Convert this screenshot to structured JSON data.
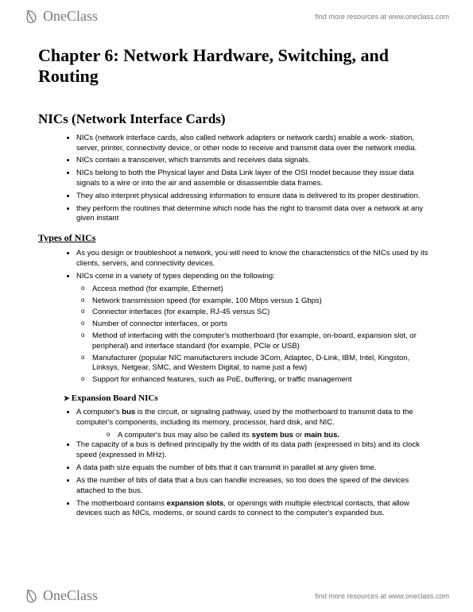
{
  "brand": {
    "name": "OneClass",
    "tagline": "find more resources at www.oneclass.com",
    "logo_color": "#7a7a7a",
    "tagline_color": "#7a7a7a"
  },
  "title": "Chapter 6: Network Hardware, Switching, and Routing",
  "section1": {
    "heading": "NICs (Network Interface Cards)",
    "bullets": [
      "NICs (network interface cards, also called network adapters or network cards) enable a work- station, server, printer, connectivity device, or other node to receive and transmit data over the network media.",
      "NICs contain a transceiver, which transmits and receives data signals.",
      "NICs belong to both the Physical layer and Data Link layer of the OSI model because they issue data signals to a wire or into the air and assemble or disassemble data frames.",
      "They also interpret physical addressing information to ensure data is delivered to its proper destination.",
      "they perform the routines that determine which node has the right to transmit data over a network at any given instant"
    ]
  },
  "section2": {
    "heading": "Types of NICs",
    "bullets": [
      "As you design or troubleshoot a network, you will need to know the characteristics of the NICs used by its clients, servers, and connectivity devices.",
      "NICs come in a variety of types depending on the following:"
    ],
    "sub": [
      "Access method (for example, Ethernet)",
      "Network transmission speed (for example, 100 Mbps versus 1 Gbps)",
      "Connector interfaces (for example, RJ-45 versus SC)",
      "Number of connector interfaces, or ports",
      "Method of interfacing with the computer's motherboard (for example, on-board, expansion slot, or peripheral) and interface standard (for example, PCIe or USB)",
      "Manufacturer (popular NIC manufacturers include 3Com, Adaptec, D-Link, IBM, Intel, Kingston, Linksys, Netgear, SMC, and Western Digital, to name just a few)",
      "Support for enhanced features, such as PoE, buffering, or traffic management"
    ]
  },
  "section3": {
    "heading": "Expansion Board NICs",
    "bullets_html": [
      "A computer's <b>bus</b> is the circuit, or signaling pathway, used by the motherboard to transmit data to the computer's components, including its memory, processor, hard disk, and NIC.",
      "The capacity of a bus is defined principally by the width of its data path (expressed in bits) and its clock speed (expressed in MHz).",
      "A data path size equals the number of bits that it can transmit in parallel at any given time.",
      "As the number of bits of data that a bus can handle increases, so too does the speed of the devices attached to the bus.",
      "The motherboard contains <b>expansion slots</b>, or openings with multiple electrical contacts, that allow devices such as NICs, modems, or sound cards to connect to the computer's expanded bus."
    ],
    "subsub_html": "A computer's bus may also be called its <b>system bus</b> or <b>main bus.</b>"
  },
  "style": {
    "body_font": "Arial",
    "heading_font": "Times New Roman",
    "text_color": "#000000",
    "bg_color": "#ffffff",
    "h1_size": 22,
    "h2_size": 17,
    "body_size": 9.5
  }
}
